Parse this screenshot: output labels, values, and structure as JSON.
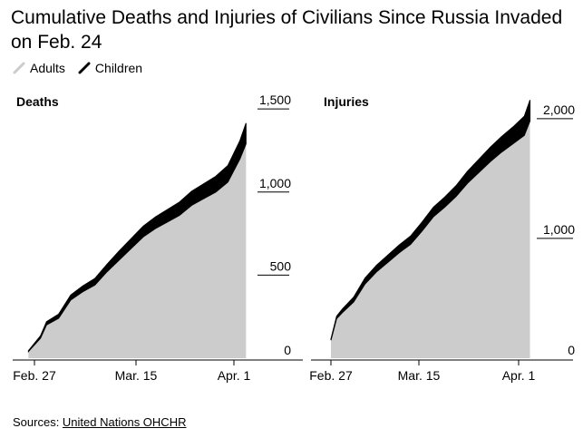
{
  "title": "Cumulative Deaths and Injuries of Civilians Since Russia Invaded on Feb. 24",
  "legend": [
    {
      "label": "Adults",
      "color": "#cccccc"
    },
    {
      "label": "Children",
      "color": "#000000"
    }
  ],
  "source": {
    "prefix": "Sources: ",
    "link": "United Nations OHCHR"
  },
  "chart_data": [
    {
      "type": "area",
      "title": "Deaths",
      "stacked": true,
      "x_ticks": [
        "Feb. 27",
        "Mar. 15",
        "Apr. 1"
      ],
      "y_ticks": [
        "0",
        "500",
        "1,000",
        "1,500"
      ],
      "ylim": [
        0,
        1550
      ],
      "x": [
        "Feb. 26",
        "Feb. 28",
        "Mar. 1",
        "Mar. 3",
        "Mar. 5",
        "Mar. 7",
        "Mar. 9",
        "Mar. 11",
        "Mar. 13",
        "Mar. 15",
        "Mar. 17",
        "Mar. 19",
        "Mar. 21",
        "Mar. 23",
        "Mar. 25",
        "Mar. 27",
        "Mar. 29",
        "Mar. 31",
        "Apr. 2",
        "Apr. 3"
      ],
      "series": [
        {
          "name": "Adults",
          "values": [
            40,
            120,
            200,
            240,
            350,
            400,
            440,
            520,
            590,
            660,
            730,
            780,
            820,
            860,
            920,
            960,
            1000,
            1060,
            1200,
            1290
          ]
        },
        {
          "name": "Children",
          "values": [
            5,
            15,
            20,
            25,
            30,
            35,
            40,
            45,
            55,
            60,
            65,
            70,
            75,
            80,
            85,
            90,
            95,
            100,
            110,
            125
          ]
        }
      ]
    },
    {
      "type": "area",
      "title": "Injuries",
      "stacked": true,
      "x_ticks": [
        "Feb. 27",
        "Mar. 15",
        "Apr. 1"
      ],
      "y_ticks": [
        "0",
        "1,000",
        "2,000"
      ],
      "ylim": [
        0,
        2150
      ],
      "x": [
        "Feb. 27",
        "Feb. 28",
        "Mar. 1",
        "Mar. 3",
        "Mar. 5",
        "Mar. 7",
        "Mar. 9",
        "Mar. 11",
        "Mar. 13",
        "Mar. 15",
        "Mar. 17",
        "Mar. 19",
        "Mar. 21",
        "Mar. 23",
        "Mar. 25",
        "Mar. 27",
        "Mar. 29",
        "Mar. 31",
        "Apr. 2",
        "Apr. 3"
      ],
      "series": [
        {
          "name": "Adults",
          "values": [
            150,
            330,
            380,
            470,
            620,
            720,
            800,
            880,
            950,
            1060,
            1180,
            1260,
            1350,
            1460,
            1550,
            1640,
            1720,
            1790,
            1860,
            1980
          ]
        },
        {
          "name": "Children",
          "values": [
            10,
            20,
            30,
            40,
            50,
            55,
            60,
            65,
            70,
            75,
            80,
            85,
            90,
            100,
            110,
            120,
            130,
            140,
            160,
            175
          ]
        }
      ]
    }
  ]
}
